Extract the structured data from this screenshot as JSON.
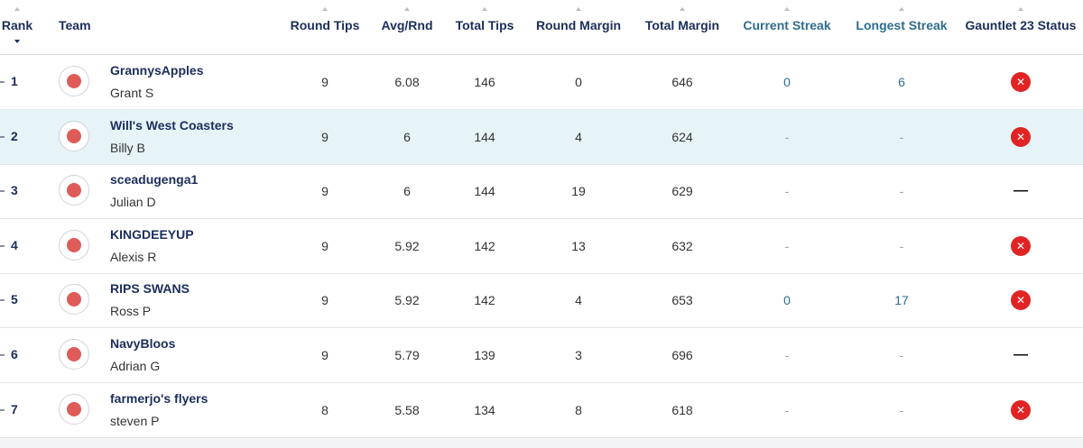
{
  "table": {
    "columns": [
      "Rank",
      "Team",
      "Round Tips",
      "Avg/Rnd",
      "Total Tips",
      "Round Margin",
      "Total Margin",
      "Current Streak",
      "Longest Streak",
      "Gauntlet 23 Status"
    ],
    "rows": [
      {
        "rank": "1",
        "team": "GrannysApples",
        "owner": "Grant S",
        "values": [
          9,
          6.08,
          146,
          0,
          646,
          0,
          6
        ],
        "status": "✕"
      },
      {
        "rank": "2",
        "team": "Will's West Coasters",
        "owner": "Billy B",
        "values": [
          9,
          6,
          144,
          4,
          624,
          "-",
          "-"
        ],
        "status": "✕"
      },
      {
        "rank": "3",
        "team": "sceadugenga1",
        "owner": "Julian D",
        "values": [
          9,
          6,
          144,
          19,
          629,
          "-",
          "-"
        ],
        "status": "—"
      },
      {
        "rank": "4",
        "team": "KINGDEEYUP",
        "owner": "Alexis R",
        "values": [
          9,
          5.92,
          142,
          13,
          632,
          "-",
          "-"
        ],
        "status": "✕"
      },
      {
        "rank": "5",
        "team": "RIPS SWANS",
        "owner": "Ross P",
        "values": [
          9,
          5.92,
          142,
          4,
          653,
          0,
          17
        ],
        "status": "✕"
      },
      {
        "rank": "6",
        "team": "NavyBloos",
        "owner": "Adrian G",
        "values": [
          9,
          5.79,
          139,
          3,
          696,
          "-",
          "-"
        ],
        "status": "—"
      },
      {
        "rank": "7",
        "team": "farmerjo's flyers",
        "owner": "steven P",
        "values": [
          8,
          5.58,
          134,
          8,
          618,
          "-",
          "-"
        ],
        "status": "✕"
      }
    ]
  }
}
